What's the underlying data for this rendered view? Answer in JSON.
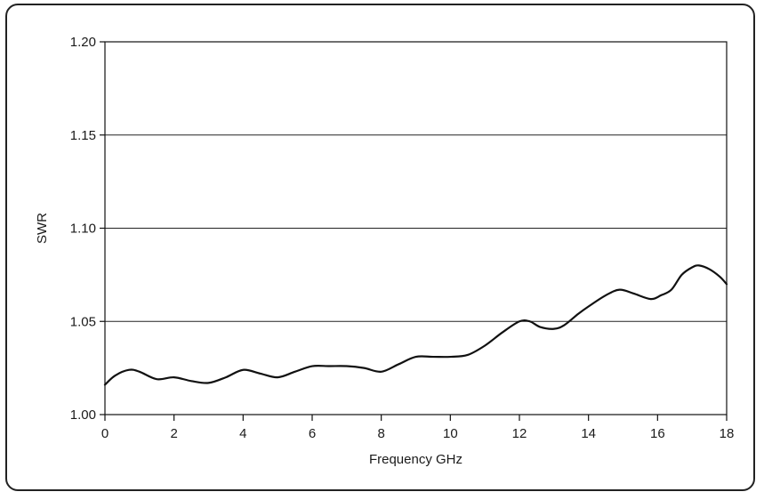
{
  "chart_data": {
    "type": "line",
    "title": "",
    "xlabel": "Frequency GHz",
    "ylabel": "SWR",
    "xlim": [
      0,
      18
    ],
    "ylim": [
      1.0,
      1.2
    ],
    "x_ticks": [
      "0",
      "2",
      "4",
      "6",
      "8",
      "10",
      "12",
      "14",
      "16",
      "18"
    ],
    "y_ticks": [
      "1.00",
      "1.05",
      "1.10",
      "1.15",
      "1.20"
    ],
    "grid": "horizontal",
    "series": [
      {
        "color": "#111111",
        "x": [
          0,
          0.3,
          0.7,
          1.0,
          1.5,
          2.0,
          2.5,
          3.0,
          3.5,
          4.0,
          4.5,
          5.0,
          5.5,
          6.0,
          6.5,
          7.0,
          7.5,
          8.0,
          8.5,
          9.0,
          9.5,
          10.0,
          10.5,
          11.0,
          11.5,
          12.0,
          12.3,
          12.6,
          13.0,
          13.3,
          13.7,
          14.0,
          14.5,
          14.9,
          15.3,
          15.8,
          16.1,
          16.4,
          16.7,
          17.0,
          17.2,
          17.5,
          17.8,
          18.0
        ],
        "y": [
          1.016,
          1.021,
          1.024,
          1.023,
          1.019,
          1.02,
          1.018,
          1.017,
          1.02,
          1.024,
          1.022,
          1.02,
          1.023,
          1.026,
          1.026,
          1.026,
          1.025,
          1.023,
          1.027,
          1.031,
          1.031,
          1.031,
          1.032,
          1.037,
          1.044,
          1.05,
          1.05,
          1.047,
          1.046,
          1.048,
          1.054,
          1.058,
          1.064,
          1.067,
          1.065,
          1.062,
          1.064,
          1.067,
          1.075,
          1.079,
          1.08,
          1.078,
          1.074,
          1.07
        ]
      }
    ]
  }
}
